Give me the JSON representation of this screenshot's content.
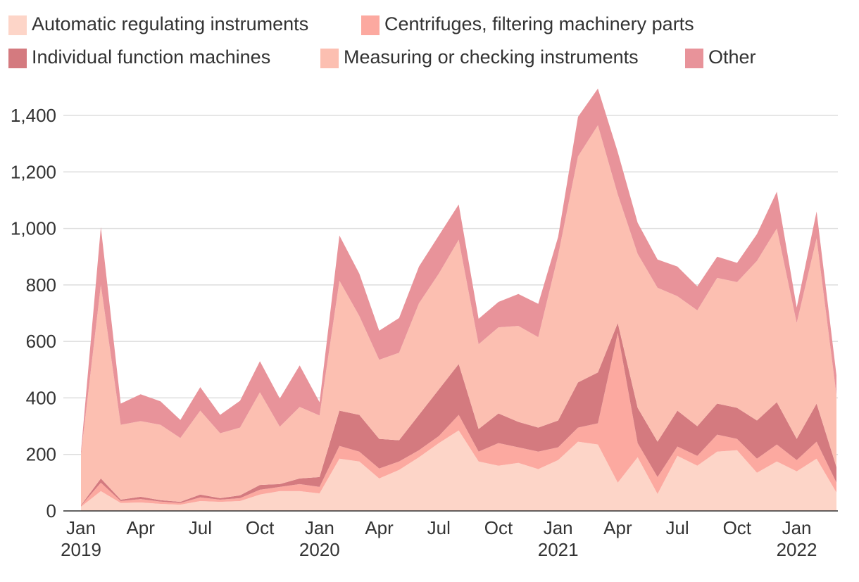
{
  "chart_data": {
    "type": "stacked-area",
    "categories": [
      "Jan 2019",
      null,
      null,
      "Apr",
      null,
      null,
      "Jul",
      null,
      null,
      "Oct",
      null,
      null,
      "Jan 2020",
      null,
      null,
      "Apr",
      null,
      null,
      "Jul",
      null,
      null,
      "Oct",
      null,
      null,
      "Jan 2021",
      null,
      null,
      "Apr",
      null,
      null,
      "Jul",
      null,
      null,
      "Oct",
      null,
      null,
      "Jan 2022",
      null,
      null
    ],
    "series": [
      {
        "name": "Automatic regulating instruments",
        "color": "#fdd5c8",
        "values": [
          15,
          70,
          28,
          30,
          25,
          22,
          35,
          32,
          35,
          58,
          70,
          70,
          62,
          185,
          175,
          115,
          145,
          190,
          240,
          285,
          175,
          160,
          170,
          148,
          180,
          245,
          235,
          100,
          190,
          60,
          195,
          160,
          210,
          215,
          135,
          175,
          140,
          185,
          65
        ]
      },
      {
        "name": "Centrifuges, filtering machinery parts",
        "color": "#fca9a0",
        "values": [
          3,
          30,
          7,
          12,
          8,
          6,
          13,
          8,
          10,
          17,
          15,
          25,
          23,
          45,
          35,
          35,
          30,
          25,
          25,
          55,
          35,
          80,
          55,
          62,
          45,
          50,
          75,
          530,
          50,
          60,
          33,
          35,
          60,
          40,
          50,
          60,
          40,
          60,
          35
        ]
      },
      {
        "name": "Individual function machines",
        "color": "#d47a7f",
        "values": [
          2,
          15,
          5,
          8,
          5,
          4,
          10,
          5,
          10,
          17,
          10,
          20,
          35,
          125,
          130,
          105,
          75,
          125,
          165,
          180,
          80,
          105,
          90,
          85,
          95,
          160,
          180,
          35,
          125,
          125,
          127,
          105,
          110,
          110,
          135,
          150,
          75,
          135,
          55
        ]
      },
      {
        "name": "Measuring or checking instruments",
        "color": "#fcbfb1",
        "values": [
          180,
          685,
          265,
          268,
          267,
          226,
          297,
          230,
          240,
          328,
          203,
          253,
          218,
          460,
          350,
          280,
          310,
          395,
          410,
          440,
          300,
          305,
          340,
          320,
          585,
          800,
          875,
          455,
          545,
          545,
          405,
          410,
          445,
          445,
          565,
          615,
          410,
          585,
          255
        ]
      },
      {
        "name": "Other",
        "color": "#e8939a",
        "values": [
          10,
          205,
          75,
          95,
          83,
          64,
          83,
          65,
          95,
          110,
          100,
          147,
          47,
          160,
          150,
          103,
          123,
          130,
          135,
          125,
          90,
          90,
          113,
          118,
          65,
          140,
          130,
          150,
          110,
          100,
          105,
          85,
          75,
          68,
          95,
          130,
          55,
          95,
          70
        ]
      }
    ],
    "ylim": [
      0,
      1500
    ],
    "yticks": [
      0,
      200,
      400,
      600,
      800,
      {
        "value": 1000,
        "label": "1,000"
      },
      {
        "value": 1200,
        "label": "1,200"
      },
      {
        "value": 1400,
        "label": "1,400"
      }
    ],
    "grid": true
  }
}
